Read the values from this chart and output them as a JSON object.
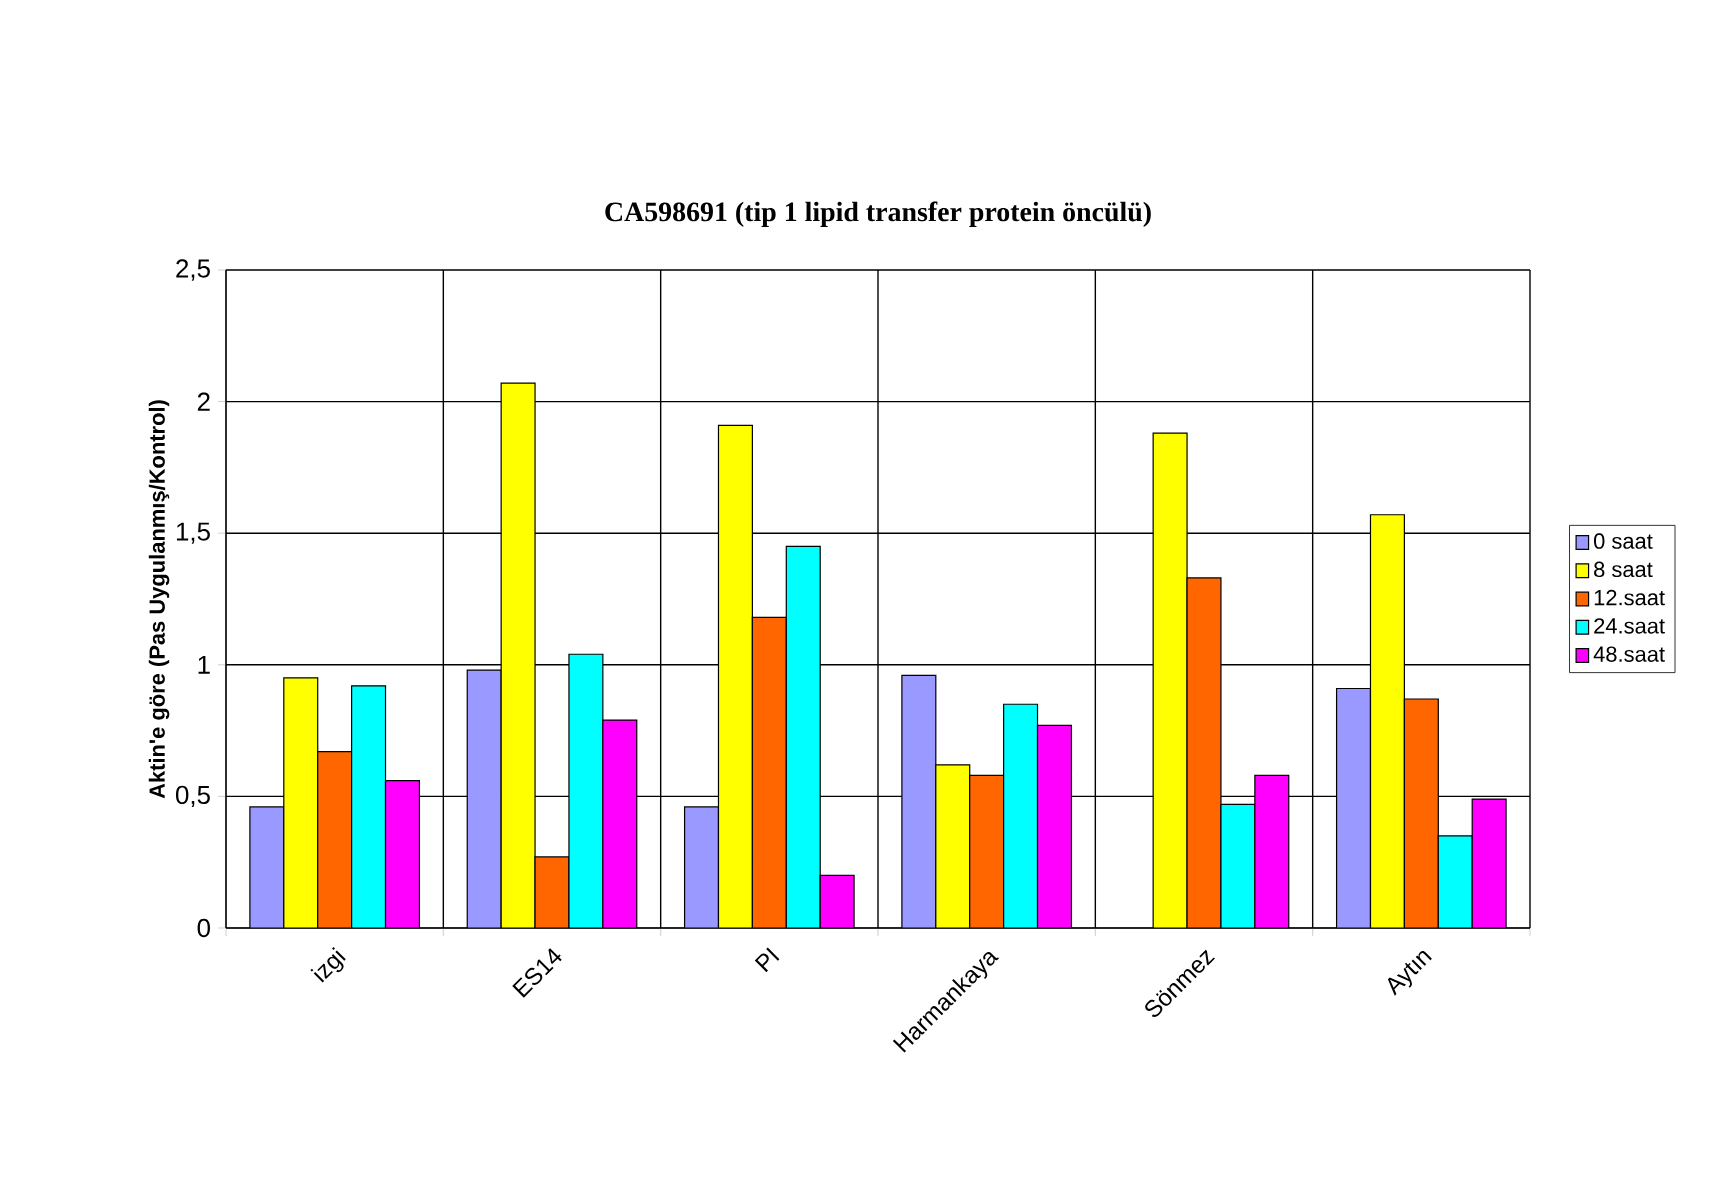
{
  "chart_data": {
    "type": "bar",
    "title": "CA598691 (tip 1 lipid transfer protein öncülü)",
    "ylabel": "Aktin'e göre (Pas Uygulanmış/Kontrol)",
    "categories": [
      "izgi",
      "ES14",
      "PI",
      "Harmankaya",
      "Sönmez",
      "Aytın"
    ],
    "series": [
      {
        "name": "0 saat",
        "color": "#9999ff",
        "values": [
          0.46,
          0.98,
          0.46,
          0.96,
          null,
          0.91
        ]
      },
      {
        "name": "8 saat",
        "color": "#ffff00",
        "values": [
          0.95,
          2.07,
          1.91,
          0.62,
          1.88,
          1.57
        ]
      },
      {
        "name": "12.saat",
        "color": "#ff6600",
        "values": [
          0.67,
          0.27,
          1.18,
          0.58,
          1.33,
          0.87
        ]
      },
      {
        "name": "24.saat",
        "color": "#00ffff",
        "values": [
          0.92,
          1.04,
          1.45,
          0.85,
          0.47,
          0.35
        ]
      },
      {
        "name": "48.saat",
        "color": "#ff00ff",
        "values": [
          0.56,
          0.79,
          0.2,
          0.77,
          0.58,
          0.49
        ]
      }
    ],
    "ylim": [
      0,
      2.5
    ],
    "yticks": [
      0,
      {
        "value": 0.5,
        "label": "0,5"
      },
      1,
      {
        "value": 1.5,
        "label": "1,5"
      },
      2,
      {
        "value": 2.5,
        "label": "2,5"
      }
    ],
    "grid": true,
    "legend": "right"
  }
}
